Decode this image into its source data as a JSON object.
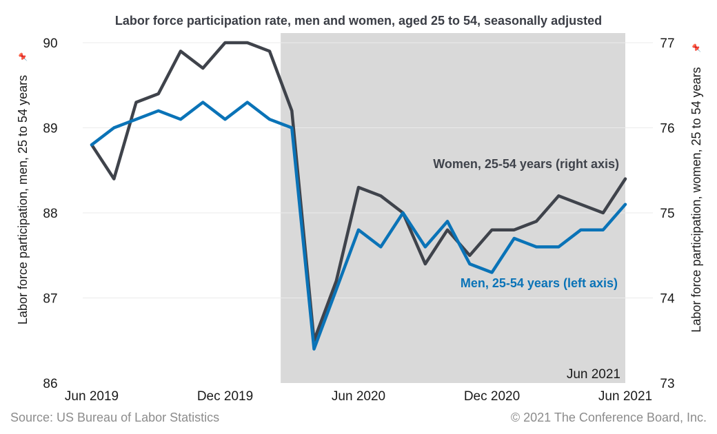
{
  "chart_data": {
    "type": "line",
    "title": "Labor force participation rate, men and women, aged 25 to 54, seasonally adjusted",
    "ylabel_left": "Labor force participation, men, 25 to 54 years",
    "ylabel_right": "Labor force participation, women, 25 to 54 years",
    "ylim_left": [
      86,
      90
    ],
    "ylim_right": [
      73,
      77
    ],
    "yticks_left": [
      86,
      87,
      88,
      89,
      90
    ],
    "yticks_right": [
      73,
      74,
      75,
      76,
      77
    ],
    "x": [
      "Jun 2019",
      "Jul 2019",
      "Aug 2019",
      "Sep 2019",
      "Oct 2019",
      "Nov 2019",
      "Dec 2019",
      "Jan 2020",
      "Feb 2020",
      "Mar 2020",
      "Apr 2020",
      "May 2020",
      "Jun 2020",
      "Jul 2020",
      "Aug 2020",
      "Sep 2020",
      "Oct 2020",
      "Nov 2020",
      "Dec 2020",
      "Jan 2021",
      "Feb 2021",
      "Mar 2021",
      "Apr 2021",
      "May 2021",
      "Jun 2021"
    ],
    "xtick_labels": [
      "Jun 2019",
      "Dec 2019",
      "Jun 2020",
      "Dec 2020",
      "Jun 2021"
    ],
    "shaded_region": {
      "start": "Mar 2020",
      "end": "Jun 2021",
      "label": "Jun 2021",
      "color": "#d9d9d9"
    },
    "series": [
      {
        "name": "Women, 25-54 years (right axis)",
        "axis": "right",
        "color": "#3f434b",
        "values": [
          75.8,
          75.4,
          76.3,
          76.4,
          76.9,
          76.7,
          77.0,
          77.0,
          76.9,
          76.2,
          73.5,
          74.2,
          75.3,
          75.2,
          75.0,
          74.4,
          74.8,
          74.5,
          74.8,
          74.8,
          74.9,
          75.2,
          75.1,
          75.0,
          75.4
        ]
      },
      {
        "name": "Men, 25-54 years (left axis)",
        "axis": "left",
        "color": "#0a73b7",
        "values": [
          88.8,
          89.0,
          89.1,
          89.2,
          89.1,
          89.3,
          89.1,
          89.3,
          89.1,
          89.0,
          86.4,
          87.1,
          87.8,
          87.6,
          88.0,
          87.6,
          87.9,
          87.4,
          87.3,
          87.7,
          87.6,
          87.6,
          87.8,
          87.8,
          88.1
        ]
      }
    ],
    "grid": true
  },
  "footer": {
    "source": "Source: US Bureau of Labor Statistics",
    "copyright": "© 2021 The Conference Board, Inc."
  },
  "icons": {
    "pin": "pin-icon"
  }
}
